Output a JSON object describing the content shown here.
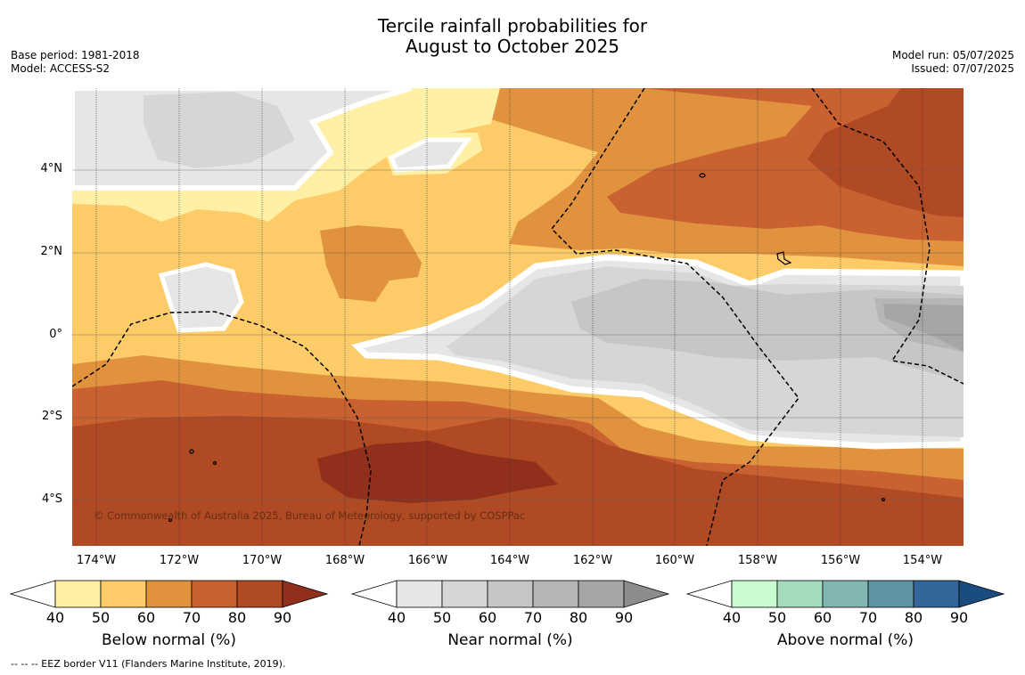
{
  "title_line1": "Tercile rainfall probabilities for",
  "title_line2": "August to October 2025",
  "base_period": "Base period: 1981-2018",
  "model": "Model: ACCESS-S2",
  "model_run": "Model run: 05/07/2025",
  "issued": "Issued: 07/07/2025",
  "copyright": "© Commonwealth of Australia 2025, Bureau of Meteorology, supported by COSPPac",
  "footnote": "--  --  -- EEZ border V11 (Flanders Marine Institute, 2019).",
  "lon_labels": [
    "174°W",
    "172°W",
    "170°W",
    "168°W",
    "166°W",
    "164°W",
    "162°W",
    "160°W",
    "158°W",
    "156°W",
    "154°W"
  ],
  "lat_labels": [
    "4°N",
    "2°N",
    "0°",
    "2°S",
    "4°S"
  ],
  "colorbars": [
    {
      "title": "Below normal (%)",
      "ticks": [
        "40",
        "50",
        "60",
        "70",
        "80",
        "90"
      ],
      "colors": [
        "#ffffff",
        "#fff0a6",
        "#fdcc68",
        "#e0923f",
        "#ca6130",
        "#b04a25",
        "#8f2f1c"
      ]
    },
    {
      "title": "Near normal (%)",
      "ticks": [
        "40",
        "50",
        "60",
        "70",
        "80",
        "90"
      ],
      "colors": [
        "#ffffff",
        "#e6e6e6",
        "#d6d6d6",
        "#c6c6c6",
        "#b6b6b6",
        "#a6a6a6",
        "#8c8c8c"
      ]
    },
    {
      "title": "Above normal (%)",
      "ticks": [
        "40",
        "50",
        "60",
        "70",
        "80",
        "90"
      ],
      "colors": [
        "#ffffff",
        "#c8fcd0",
        "#a4dbbd",
        "#82b6b1",
        "#5f92a2",
        "#336699",
        "#1a4c80"
      ]
    }
  ],
  "map_colors": {
    "bn50": "#fff0a6",
    "bn60": "#fdcc68",
    "bn70": "#e0923f",
    "bn80": "#ca6130",
    "bn90": "#b04a25",
    "bn100": "#8f2f1c",
    "nn50": "#e6e6e6",
    "nn60": "#d6d6d6",
    "nn70": "#c6c6c6",
    "nn80": "#b6b6b6",
    "nn90": "#a6a6a6"
  }
}
